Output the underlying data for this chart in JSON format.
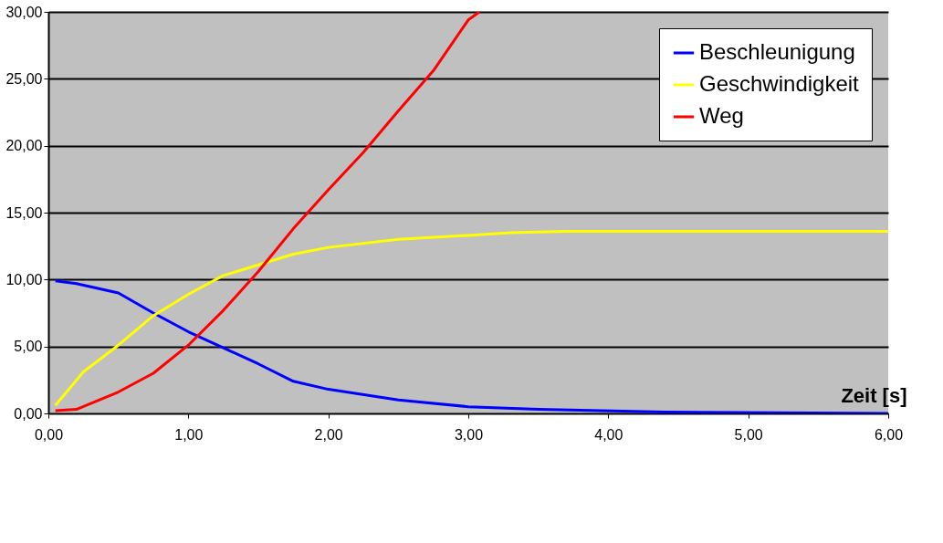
{
  "chart_data": {
    "type": "line",
    "xlabel": "Zeit [s]",
    "xlim": [
      0,
      6
    ],
    "ylim": [
      0,
      30
    ],
    "xticks": [
      {
        "value": 0,
        "label": "0,00"
      },
      {
        "value": 1,
        "label": "1,00"
      },
      {
        "value": 2,
        "label": "2,00"
      },
      {
        "value": 3,
        "label": "3,00"
      },
      {
        "value": 4,
        "label": "4,00"
      },
      {
        "value": 5,
        "label": "5,00"
      },
      {
        "value": 6,
        "label": "6,00"
      }
    ],
    "yticks": [
      {
        "value": 0,
        "label": "0,00"
      },
      {
        "value": 5,
        "label": "5,00"
      },
      {
        "value": 10,
        "label": "10,00"
      },
      {
        "value": 15,
        "label": "15,00"
      },
      {
        "value": 20,
        "label": "20,00"
      },
      {
        "value": 25,
        "label": "25,00"
      },
      {
        "value": 30,
        "label": "30,00"
      }
    ],
    "grid": "y",
    "legend": "top right",
    "marker": "none",
    "line_style": "solid",
    "series": [
      {
        "name": "Beschleunigung",
        "color": "#0000ff",
        "x": [
          0.05,
          0.2,
          0.5,
          0.75,
          1.0,
          1.25,
          1.5,
          1.75,
          2.0,
          2.5,
          3.0,
          3.5,
          4.4,
          6.0
        ],
        "values": [
          9.9,
          9.7,
          9.0,
          7.5,
          6.1,
          4.9,
          3.7,
          2.4,
          1.8,
          1.0,
          0.5,
          0.3,
          0.1,
          0.0
        ]
      },
      {
        "name": "Geschwindigkeit",
        "color": "#ffff00",
        "x": [
          0.05,
          0.25,
          0.5,
          0.75,
          1.0,
          1.25,
          1.5,
          1.75,
          2.0,
          2.5,
          3.0,
          3.3,
          3.7,
          6.0
        ],
        "values": [
          0.6,
          3.1,
          5.1,
          7.3,
          8.9,
          10.3,
          11.1,
          11.9,
          12.4,
          13.0,
          13.3,
          13.5,
          13.6,
          13.6
        ]
      },
      {
        "name": "Weg",
        "color": "#ff0000",
        "x": [
          0.05,
          0.2,
          0.5,
          0.75,
          1.0,
          1.25,
          1.5,
          1.75,
          2.0,
          2.25,
          2.5,
          2.75,
          3.0,
          3.08
        ],
        "values": [
          0.2,
          0.3,
          1.6,
          3.0,
          5.1,
          7.7,
          10.6,
          13.8,
          16.7,
          19.5,
          22.6,
          25.6,
          29.4,
          30.0
        ]
      }
    ]
  }
}
